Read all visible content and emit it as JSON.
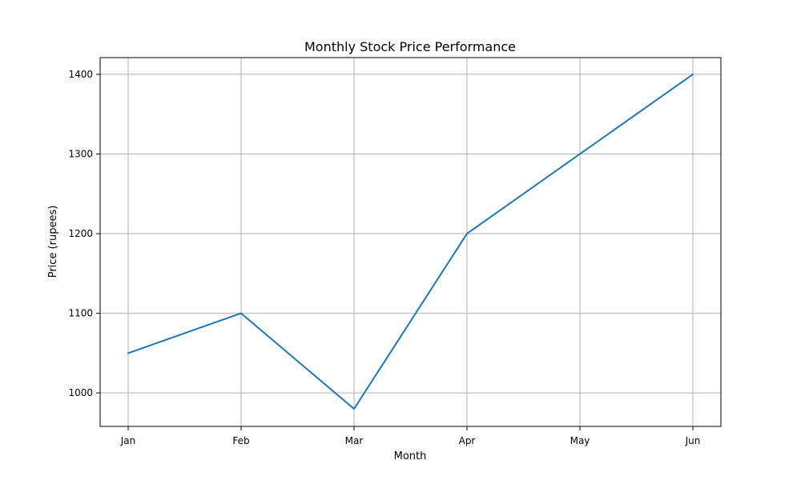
{
  "chart_data": {
    "type": "line",
    "title": "Monthly Stock Price Performance",
    "xlabel": "Month",
    "ylabel": "Price (rupees)",
    "categories": [
      "Jan",
      "Feb",
      "Mar",
      "Apr",
      "May",
      "Jun"
    ],
    "series": [
      {
        "values": [
          1050,
          1100,
          980,
          1200,
          1300,
          1400
        ],
        "color": "#1f77b4"
      }
    ],
    "ylim": [
      958,
      1421
    ],
    "yticks": [
      1000,
      1100,
      1200,
      1300,
      1400
    ],
    "grid": true,
    "legend": "none"
  }
}
